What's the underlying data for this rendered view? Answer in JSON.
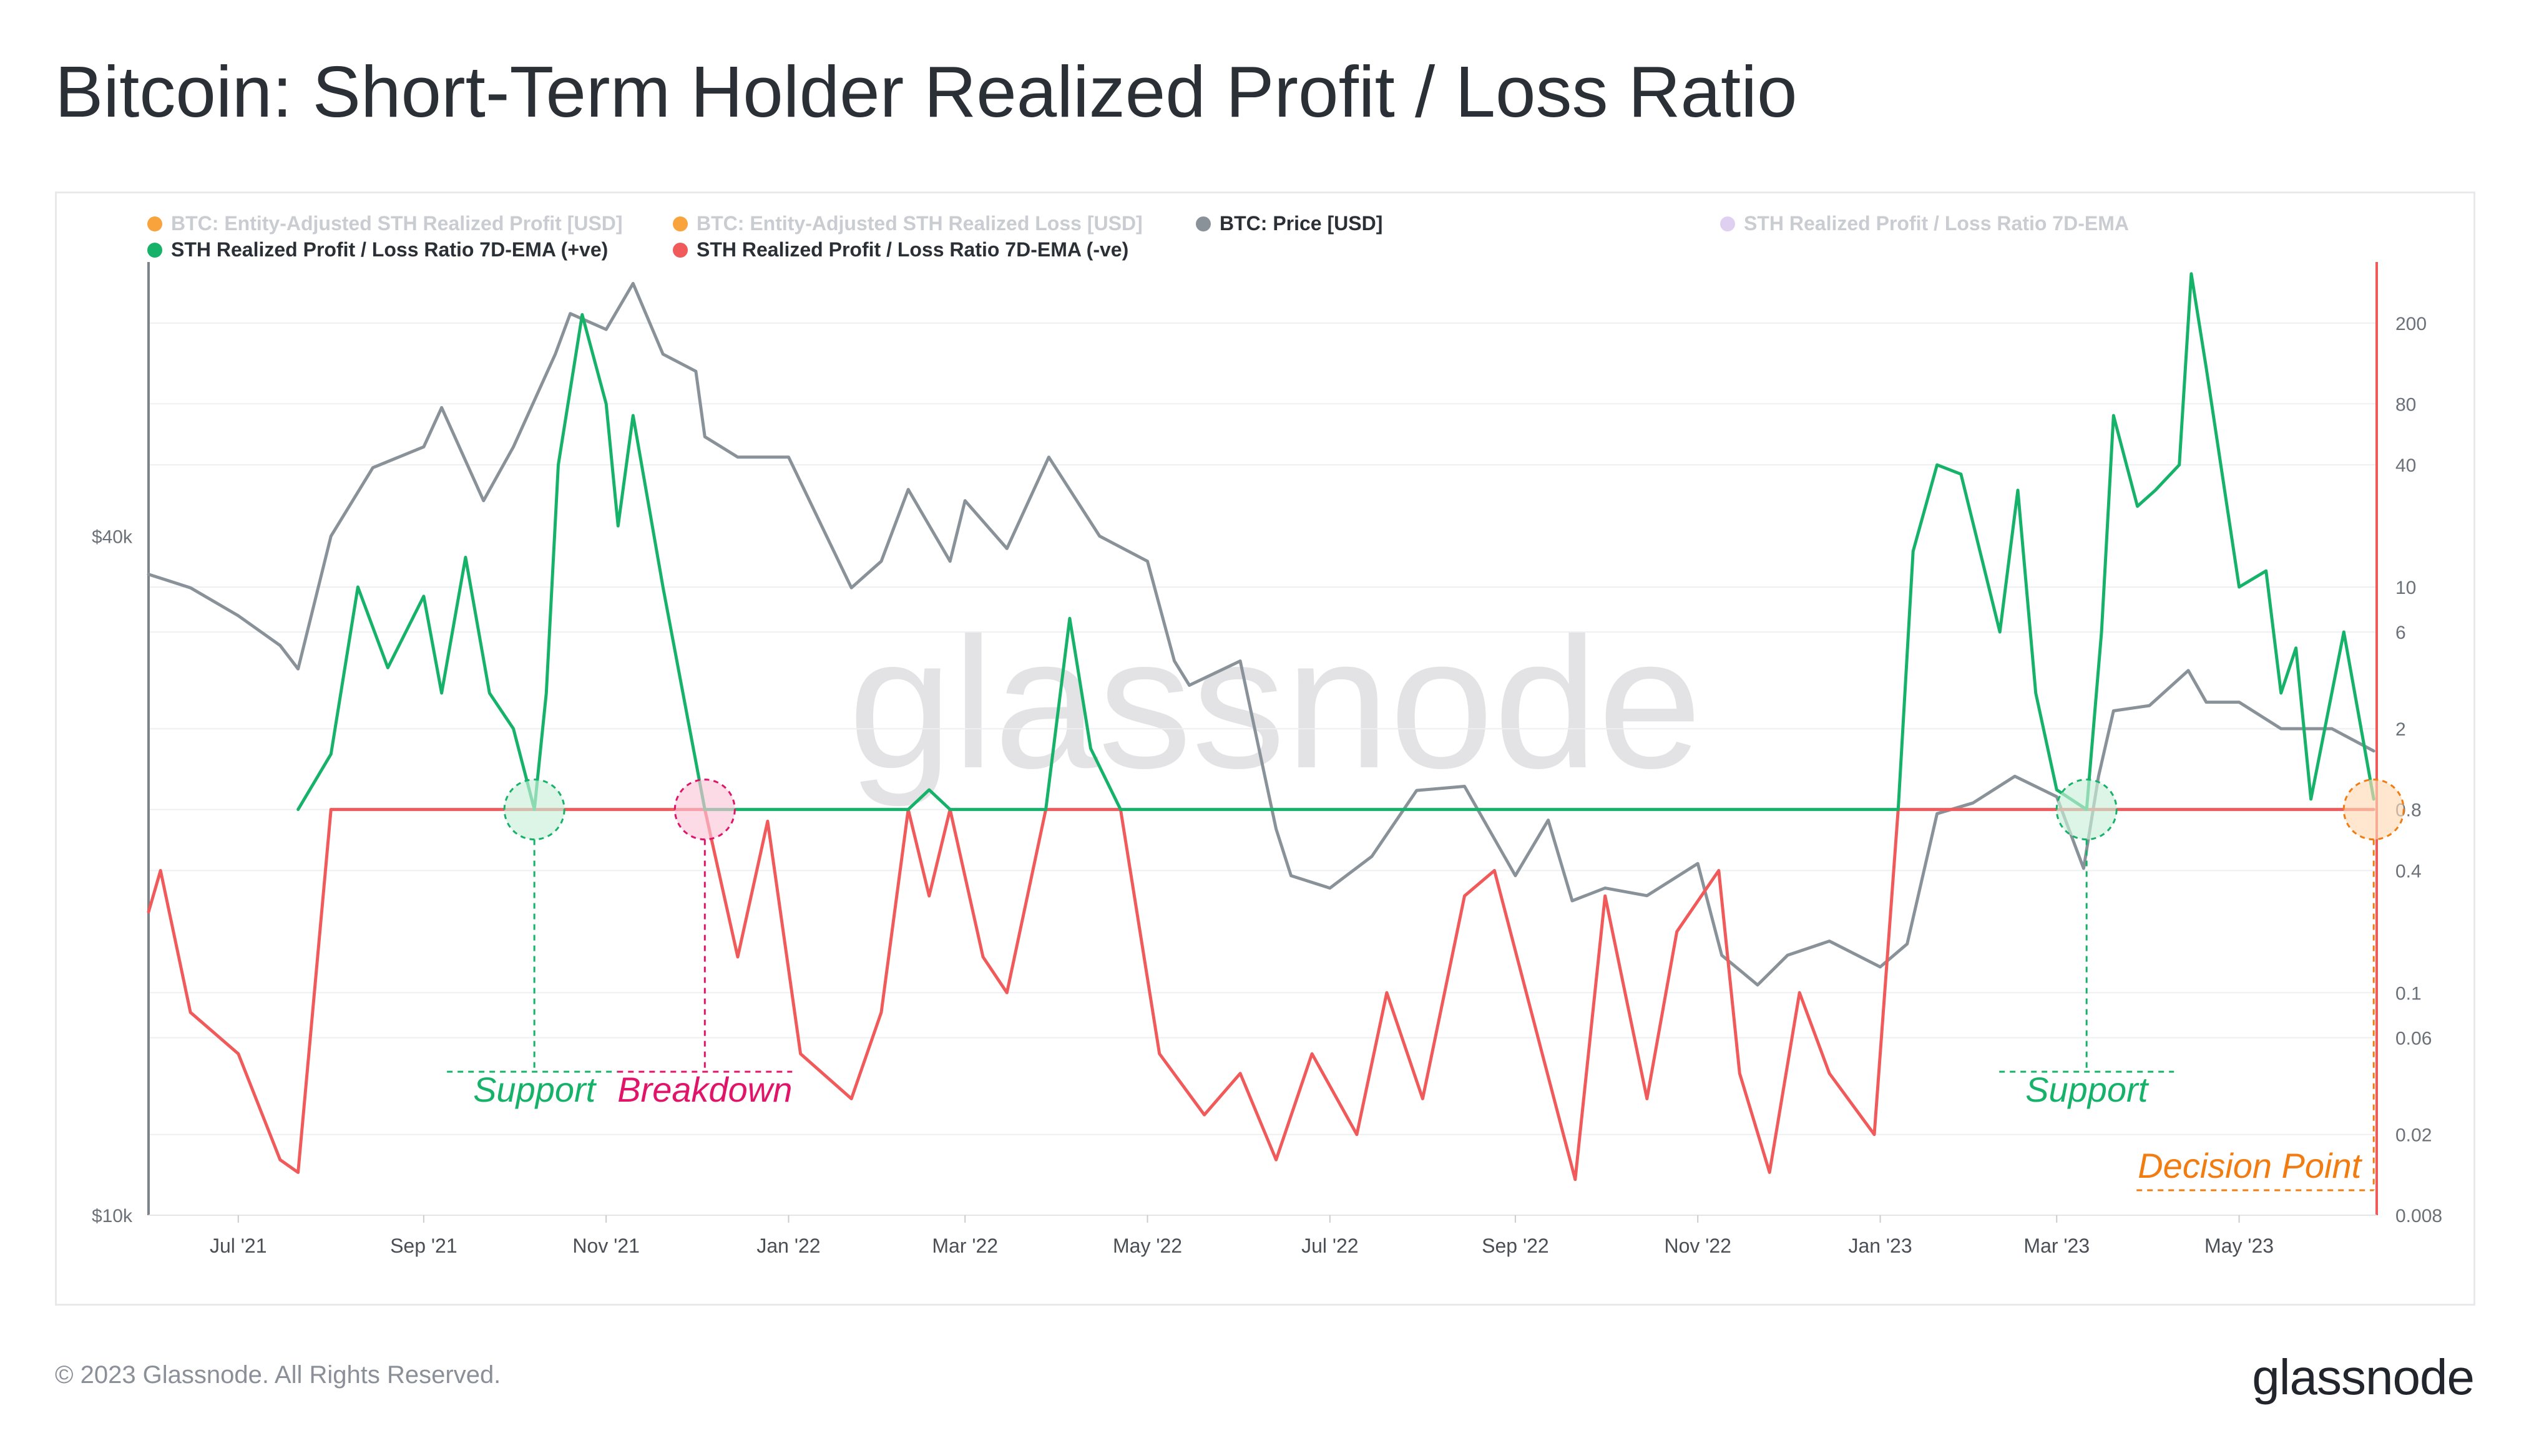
{
  "title": "Bitcoin: Short-Term Holder Realized Profit / Loss Ratio",
  "footer": {
    "copyright": "© 2023 Glassnode. All Rights Reserved.",
    "logo": "glassnode",
    "watermark": "glassnode"
  },
  "legend": [
    {
      "label": "BTC: Entity-Adjusted STH Realized Profit [USD]",
      "color": "#f7931a",
      "active": false
    },
    {
      "label": "BTC: Entity-Adjusted STH Realized Loss [USD]",
      "color": "#f7931a",
      "active": false
    },
    {
      "label": "BTC: Price [USD]",
      "color": "#8a9299",
      "active": true
    },
    {
      "label": "STH Realized Profit / Loss Ratio 7D-EMA",
      "color": "#d9c8ee",
      "active": false
    },
    {
      "label": "STH Realized Profit / Loss Ratio 7D-EMA (+ve)",
      "color": "#17b26a",
      "active": true
    },
    {
      "label": "STH Realized Profit / Loss Ratio 7D-EMA (-ve)",
      "color": "#f05a5a",
      "active": true
    }
  ],
  "annotations": [
    {
      "label": "Support",
      "date": "2021-10-08",
      "color": "#17b26a"
    },
    {
      "label": "Breakdown",
      "date": "2021-12-04",
      "color": "#e0156a"
    },
    {
      "label": "Support",
      "date": "2023-03-11",
      "color": "#17b26a"
    },
    {
      "label": "Decision Point",
      "date": "2023-06-15",
      "color": "#f07c12"
    }
  ],
  "chart_data": {
    "type": "line",
    "x_range": [
      "2021-06-01",
      "2023-06-16"
    ],
    "x_ticks": [
      "Jul '21",
      "Sep '21",
      "Nov '21",
      "Jan '22",
      "Mar '22",
      "May '22",
      "Jul '22",
      "Sep '22",
      "Nov '22",
      "Jan '23",
      "Mar '23",
      "May '23"
    ],
    "y_left": {
      "scale": "log",
      "ticks": [
        "$10k",
        "$40k"
      ],
      "tick_values": [
        10000,
        40000
      ],
      "range": [
        10000,
        70000
      ]
    },
    "y_right": {
      "scale": "log",
      "ticks": [
        "200",
        "80",
        "40",
        "10",
        "6",
        "2",
        "0.8",
        "0.4",
        "0.1",
        "0.06",
        "0.02",
        "0.008"
      ],
      "tick_values": [
        200,
        80,
        40,
        10,
        6,
        2,
        0.8,
        0.4,
        0.1,
        0.06,
        0.02,
        0.008
      ],
      "range": [
        0.008,
        400
      ]
    },
    "series": [
      {
        "name": "BTC: Price [USD]",
        "axis": "left",
        "color": "#8a9299",
        "x": [
          "2021-06-01",
          "2021-06-15",
          "2021-07-01",
          "2021-07-15",
          "2021-07-21",
          "2021-08-01",
          "2021-08-15",
          "2021-09-01",
          "2021-09-07",
          "2021-09-21",
          "2021-10-01",
          "2021-10-15",
          "2021-10-20",
          "2021-11-01",
          "2021-11-10",
          "2021-11-20",
          "2021-12-01",
          "2021-12-04",
          "2021-12-15",
          "2022-01-01",
          "2022-01-22",
          "2022-02-01",
          "2022-02-10",
          "2022-02-24",
          "2022-03-01",
          "2022-03-15",
          "2022-03-29",
          "2022-04-15",
          "2022-05-01",
          "2022-05-10",
          "2022-05-15",
          "2022-06-01",
          "2022-06-13",
          "2022-06-18",
          "2022-07-01",
          "2022-07-15",
          "2022-07-30",
          "2022-08-15",
          "2022-09-01",
          "2022-09-12",
          "2022-09-20",
          "2022-10-01",
          "2022-10-15",
          "2022-11-01",
          "2022-11-09",
          "2022-11-21",
          "2022-12-01",
          "2022-12-15",
          "2023-01-01",
          "2023-01-10",
          "2023-01-20",
          "2023-02-01",
          "2023-02-15",
          "2023-03-01",
          "2023-03-10",
          "2023-03-15",
          "2023-03-20",
          "2023-04-01",
          "2023-04-14",
          "2023-04-20",
          "2023-05-01",
          "2023-05-15",
          "2023-06-01",
          "2023-06-15"
        ],
        "y": [
          37000,
          36000,
          34000,
          32000,
          30500,
          40000,
          46000,
          48000,
          52000,
          43000,
          48000,
          58000,
          63000,
          61000,
          67000,
          58000,
          56000,
          49000,
          47000,
          47000,
          36000,
          38000,
          44000,
          38000,
          43000,
          39000,
          47000,
          40000,
          38000,
          31000,
          29500,
          31000,
          22000,
          20000,
          19500,
          20800,
          23800,
          24000,
          20000,
          22400,
          19000,
          19500,
          19200,
          20500,
          17000,
          16000,
          17000,
          17500,
          16600,
          17400,
          22700,
          23200,
          24500,
          23500,
          20300,
          24500,
          28000,
          28300,
          30400,
          28500,
          28500,
          27000,
          27000,
          25800
        ]
      },
      {
        "name": "STH Realized Profit / Loss Ratio 7D-EMA (+ve)",
        "axis": "right",
        "color": "#17b26a",
        "x": [
          "2021-07-21",
          "2021-08-01",
          "2021-08-10",
          "2021-08-20",
          "2021-09-01",
          "2021-09-07",
          "2021-09-15",
          "2021-09-23",
          "2021-10-01",
          "2021-10-08",
          "2021-10-12",
          "2021-10-16",
          "2021-10-24",
          "2021-11-01",
          "2021-11-05",
          "2021-11-10",
          "2021-11-20",
          "2021-12-04",
          "2022-02-10",
          "2022-02-17",
          "2022-02-24",
          "2022-03-28",
          "2022-04-05",
          "2022-04-12",
          "2022-04-22",
          "2023-01-07",
          "2023-01-12",
          "2023-01-20",
          "2023-01-28",
          "2023-02-10",
          "2023-02-16",
          "2023-02-22",
          "2023-03-01",
          "2023-03-11",
          "2023-03-16",
          "2023-03-20",
          "2023-03-28",
          "2023-04-03",
          "2023-04-11",
          "2023-04-15",
          "2023-04-20",
          "2023-05-01",
          "2023-05-10",
          "2023-05-15",
          "2023-05-20",
          "2023-05-25",
          "2023-06-05",
          "2023-06-15"
        ],
        "y": [
          0.8,
          1.5,
          10,
          4,
          9,
          3,
          14,
          3,
          2,
          0.8,
          3,
          40,
          220,
          80,
          20,
          70,
          10,
          0.8,
          0.8,
          1,
          0.8,
          0.8,
          7,
          1.6,
          0.8,
          0.8,
          15,
          40,
          36,
          6,
          30,
          3,
          1,
          0.8,
          6,
          70,
          25,
          30,
          40,
          350,
          120,
          10,
          12,
          3,
          5,
          0.9,
          6,
          0.9
        ]
      },
      {
        "name": "STH Realized Profit / Loss Ratio 7D-EMA (-ve)",
        "axis": "right",
        "color": "#f05a5a",
        "x": [
          "2021-06-01",
          "2021-06-05",
          "2021-06-15",
          "2021-07-01",
          "2021-07-15",
          "2021-07-21",
          "2021-08-01",
          "2021-12-04",
          "2021-12-15",
          "2021-12-25",
          "2022-01-05",
          "2022-01-22",
          "2022-02-01",
          "2022-02-10",
          "2022-02-17",
          "2022-02-24",
          "2022-03-07",
          "2022-03-15",
          "2022-03-28",
          "2022-04-22",
          "2022-05-05",
          "2022-05-20",
          "2022-06-01",
          "2022-06-13",
          "2022-06-25",
          "2022-07-10",
          "2022-07-20",
          "2022-08-01",
          "2022-08-15",
          "2022-08-25",
          "2022-09-10",
          "2022-09-21",
          "2022-10-01",
          "2022-10-15",
          "2022-10-25",
          "2022-11-08",
          "2022-11-15",
          "2022-11-25",
          "2022-12-05",
          "2022-12-15",
          "2022-12-30",
          "2023-01-07",
          "2023-03-11",
          "2023-06-15"
        ],
        "y": [
          0.25,
          0.4,
          0.08,
          0.05,
          0.015,
          0.013,
          0.8,
          0.8,
          0.15,
          0.7,
          0.05,
          0.03,
          0.08,
          0.8,
          0.3,
          0.8,
          0.15,
          0.1,
          0.8,
          0.8,
          0.05,
          0.025,
          0.04,
          0.015,
          0.05,
          0.02,
          0.1,
          0.03,
          0.3,
          0.4,
          0.05,
          0.012,
          0.3,
          0.03,
          0.2,
          0.4,
          0.04,
          0.013,
          0.1,
          0.04,
          0.02,
          0.8,
          0.8,
          0.8
        ]
      }
    ]
  }
}
